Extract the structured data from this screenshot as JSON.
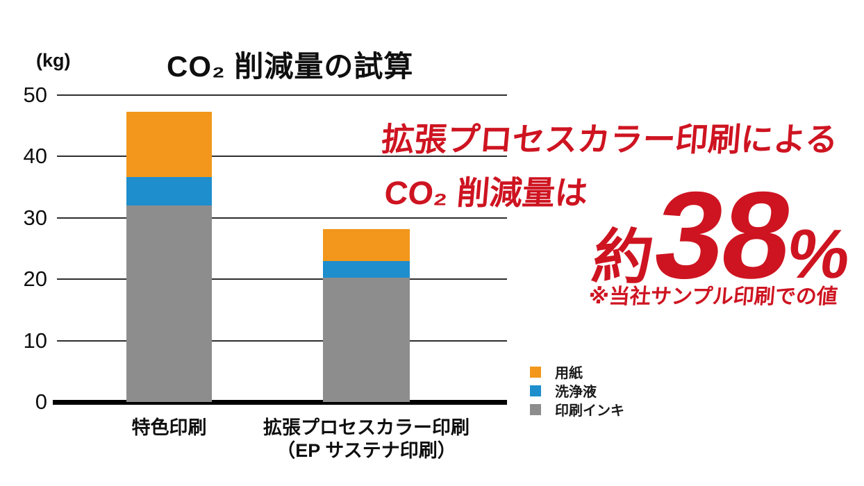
{
  "page": {
    "background": "#ffffff"
  },
  "chart_data": {
    "type": "bar",
    "stacked": true,
    "title": "CO₂ 削減量の試算",
    "unit_label": "(kg)",
    "categories": [
      {
        "lines": [
          "特色印刷"
        ]
      },
      {
        "lines": [
          "拡張プロセスカラー印刷",
          "（EP サステナ印刷）"
        ]
      }
    ],
    "series": [
      {
        "key": "ink",
        "name": "印刷インキ",
        "color": "#8E8D8D",
        "values": [
          32.0,
          20.3
        ]
      },
      {
        "key": "wash",
        "name": "洗浄液",
        "color": "#1E8ECD",
        "values": [
          4.7,
          2.7
        ]
      },
      {
        "key": "paper",
        "name": "用紙",
        "color": "#F2971B",
        "values": [
          10.6,
          5.2
        ]
      }
    ],
    "totals": [
      47.3,
      28.2
    ],
    "ylabel": "",
    "xlabel": "",
    "ylim": [
      0,
      50
    ],
    "yticks": [
      0,
      10,
      20,
      30,
      40,
      50
    ],
    "grid": "horizontal",
    "legend_position": "bottom-right",
    "legend_order_top_to_bottom": [
      "用紙",
      "洗浄液",
      "印刷インキ"
    ]
  },
  "annotation": {
    "line1": "拡張プロセスカラー印刷による",
    "line2": "CO₂ 削減量は",
    "approx_prefix": "約",
    "value": "38",
    "percent_sign": "%",
    "note": "※当社サンプル印刷での値",
    "color": "#CE1421"
  }
}
